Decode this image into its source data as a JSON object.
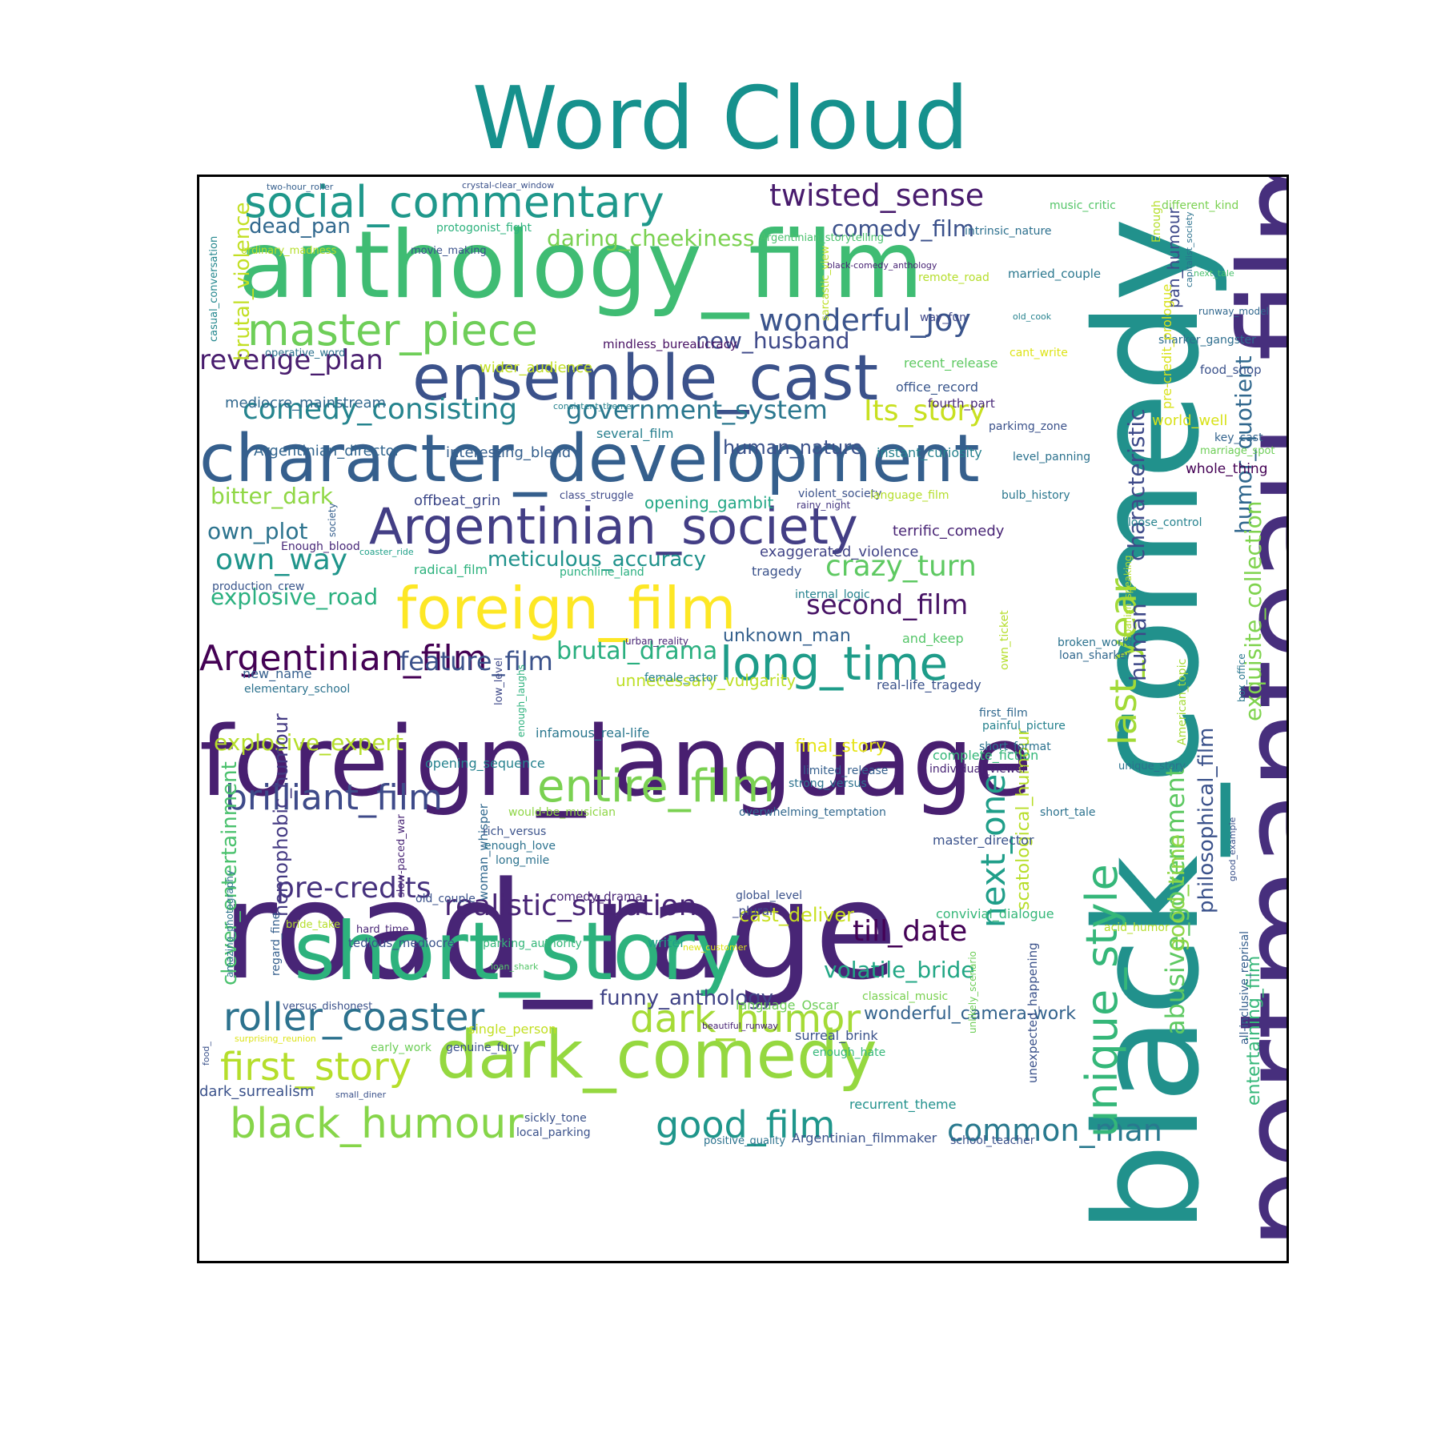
{
  "title": "Word Cloud",
  "title_color": "#16918d",
  "words": [
    {
      "text": "black_comedy",
      "color": "#21918c"
    },
    {
      "text": "portmanteau_film",
      "color": "#472f7d"
    },
    {
      "text": "road_rage",
      "color": "#482576"
    },
    {
      "text": "foreign_language",
      "color": "#481f70"
    },
    {
      "text": "anthology_film",
      "color": "#3fbc73"
    },
    {
      "text": "character_development",
      "color": "#355f8d"
    },
    {
      "text": "short_story",
      "color": "#2db27d"
    },
    {
      "text": "dark_comedy",
      "color": "#95d840"
    },
    {
      "text": "ensemble_cast",
      "color": "#3b528b"
    },
    {
      "text": "Argentinian_society",
      "color": "#433e85"
    },
    {
      "text": "foreign_film",
      "color": "#fde725"
    },
    {
      "text": "social_commentary",
      "color": "#1f988b"
    },
    {
      "text": "master_piece",
      "color": "#6ece58"
    },
    {
      "text": "long_time",
      "color": "#1e9c89"
    },
    {
      "text": "entire_film",
      "color": "#7ad151"
    },
    {
      "text": "dark_humor",
      "color": "#a5db36"
    },
    {
      "text": "black_humour",
      "color": "#86d549"
    },
    {
      "text": "roller_coaster",
      "color": "#2c728e"
    },
    {
      "text": "first_story",
      "color": "#b5de2b"
    },
    {
      "text": "Argentinian_film",
      "color": "#440154"
    },
    {
      "text": "brilliant_film",
      "color": "#3e4a89"
    },
    {
      "text": "good_film",
      "color": "#1f968b"
    },
    {
      "text": "common_man",
      "color": "#29798e"
    },
    {
      "text": "unique_style",
      "color": "#35b779"
    },
    {
      "text": "last_year",
      "color": "#a2da37"
    },
    {
      "text": "next_one",
      "color": "#1f9e89"
    },
    {
      "text": "abusive_government",
      "color": "#5ec962"
    },
    {
      "text": "humor_quotient",
      "color": "#31688e"
    },
    {
      "text": "exquisite_collection",
      "color": "#7fd34e"
    },
    {
      "text": "twisted_sense",
      "color": "#481b6d"
    },
    {
      "text": "wonderful_joy",
      "color": "#3a548c"
    },
    {
      "text": "comedy_consisting",
      "color": "#25848e"
    },
    {
      "text": "government_system",
      "color": "#2a778e"
    },
    {
      "text": "Its_story",
      "color": "#c8e020"
    },
    {
      "text": "revenge_plan",
      "color": "#481c6e"
    },
    {
      "text": "own_way",
      "color": "#1f958b"
    },
    {
      "text": "crazy_turn",
      "color": "#5ec962"
    },
    {
      "text": "second_film",
      "color": "#471365"
    },
    {
      "text": "realistic_situation",
      "color": "#482475"
    },
    {
      "text": "pre-credits",
      "color": "#46327e"
    },
    {
      "text": "till_date",
      "color": "#440256"
    },
    {
      "text": "daring_cheekiness",
      "color": "#7ad151"
    },
    {
      "text": "comedy_film",
      "color": "#3b518b"
    },
    {
      "text": "dead_pan",
      "color": "#31688e"
    },
    {
      "text": "new_husband",
      "color": "#3e4989"
    },
    {
      "text": "feature_film",
      "color": "#3b528b"
    },
    {
      "text": "own_plot",
      "color": "#2c738e"
    },
    {
      "text": "bitter_dark",
      "color": "#8fd744"
    },
    {
      "text": "explosive_road",
      "color": "#2ab07f"
    },
    {
      "text": "explosive_expert",
      "color": "#b5de2b"
    },
    {
      "text": "brutal_drama",
      "color": "#29af7f"
    },
    {
      "text": "volatile_bride",
      "color": "#22a785"
    },
    {
      "text": "funny_anthology",
      "color": "#414487"
    },
    {
      "text": "wonderful_camera-work",
      "color": "#33638d"
    },
    {
      "text": "meticulous_accuracy",
      "color": "#20928c"
    },
    {
      "text": "human_nature",
      "color": "#3b528b"
    },
    {
      "text": "brutal_violence",
      "color": "#c2df23"
    },
    {
      "text": "clever_entertainment",
      "color": "#4ac16d"
    },
    {
      "text": "characteristic",
      "color": "#3e4a89"
    },
    {
      "text": "human",
      "color": "#3e4989"
    },
    {
      "text": "philosophical_film",
      "color": "#3b528b"
    },
    {
      "text": "good_time",
      "color": "#8ed645"
    },
    {
      "text": "entertaining_film",
      "color": "#35b779"
    },
    {
      "text": "homophobic_humour",
      "color": "#443a83"
    },
    {
      "text": "scatological_humour",
      "color": "#b8de29"
    },
    {
      "text": "unknown_man",
      "color": "#34608d"
    },
    {
      "text": "unnecessary_vulgarity",
      "color": "#bddf26"
    },
    {
      "text": "cast_deliver",
      "color": "#c8e020"
    },
    {
      "text": "final_story",
      "color": "#e5e419"
    },
    {
      "text": "opening_gambit",
      "color": "#22a785"
    },
    {
      "text": "interesting_blend",
      "color": "#355f8d"
    },
    {
      "text": "Argentinian_director",
      "color": "#32658e"
    },
    {
      "text": "mediocre_mainstream",
      "color": "#31688e"
    },
    {
      "text": "wider_audience",
      "color": "#c2df23"
    },
    {
      "text": "mindless_bureaucracy",
      "color": "#471063"
    },
    {
      "text": "recent_release",
      "color": "#5ec962"
    },
    {
      "text": "office_record",
      "color": "#39568c"
    },
    {
      "text": "fourth_part",
      "color": "#482878"
    },
    {
      "text": "parkimg_zone",
      "color": "#3b528b"
    },
    {
      "text": "instant_curiosity",
      "color": "#26828e"
    },
    {
      "text": "level_panning",
      "color": "#2c728e"
    },
    {
      "text": "whole_thing",
      "color": "#440154"
    },
    {
      "text": "key_cast",
      "color": "#33638d"
    },
    {
      "text": "marriage_spot",
      "color": "#6ece58"
    },
    {
      "text": "world_well",
      "color": "#d8e219"
    },
    {
      "text": "food_shop",
      "color": "#3b528b"
    },
    {
      "text": "sharker_gangster",
      "color": "#2e6e8e"
    },
    {
      "text": "cant_write",
      "color": "#dde318"
    },
    {
      "text": "runway_model",
      "color": "#31688e"
    },
    {
      "text": "old_cook",
      "color": "#26828e"
    },
    {
      "text": "way_fun",
      "color": "#3f4788"
    },
    {
      "text": "married_couple",
      "color": "#2a778e"
    },
    {
      "text": "remote_road",
      "color": "#b5de2b"
    },
    {
      "text": "black-comedy_anthology",
      "color": "#482475"
    },
    {
      "text": "intrinsic_nature",
      "color": "#2d708e"
    },
    {
      "text": "Argentinian_storytelling",
      "color": "#4ac16d"
    },
    {
      "text": "music_critic",
      "color": "#54c568"
    },
    {
      "text": "different_kind",
      "color": "#7ad151"
    },
    {
      "text": "next_tale",
      "color": "#4ac16d"
    },
    {
      "text": "capitalist_society",
      "color": "#2c728e"
    },
    {
      "text": "pan_humour",
      "color": "#3e4989"
    },
    {
      "text": "Enough",
      "color": "#b5de2b"
    },
    {
      "text": "pre-credit_prologue",
      "color": "#d8e219"
    },
    {
      "text": "sarcastic_view",
      "color": "#bddf26"
    },
    {
      "text": "two-hour_roller",
      "color": "#355f8d"
    },
    {
      "text": "crystal-clear_window",
      "color": "#3b528b"
    },
    {
      "text": "protogonist_fight",
      "color": "#2db27d"
    },
    {
      "text": "movie_making",
      "color": "#3b528b"
    },
    {
      "text": "ordinary_madness",
      "color": "#b5de2b"
    },
    {
      "text": "casual_conversation",
      "color": "#24878e"
    },
    {
      "text": "operative_word",
      "color": "#2c728e"
    },
    {
      "text": "consistent_theme",
      "color": "#26828e"
    },
    {
      "text": "several_film",
      "color": "#277f8e"
    },
    {
      "text": "class_struggle",
      "color": "#3e4989"
    },
    {
      "text": "offbeat_grin",
      "color": "#3e4989"
    },
    {
      "text": "violent_society",
      "color": "#3b528b"
    },
    {
      "text": "rainy_night",
      "color": "#453781"
    },
    {
      "text": "language_film",
      "color": "#b5de2b"
    },
    {
      "text": "bulb_history",
      "color": "#2a778e"
    },
    {
      "text": "loose_control",
      "color": "#26828e"
    },
    {
      "text": "terrific_comedy",
      "color": "#482475"
    },
    {
      "text": "exaggerated_violence",
      "color": "#414487"
    },
    {
      "text": "Enough_blood",
      "color": "#482878"
    },
    {
      "text": "coaster_ride",
      "color": "#1fa088"
    },
    {
      "text": "society",
      "color": "#355f8d"
    },
    {
      "text": "radical_film",
      "color": "#2db27d"
    },
    {
      "text": "punchline_land",
      "color": "#29af7f"
    },
    {
      "text": "tragedy",
      "color": "#3b528b"
    },
    {
      "text": "internal_logic",
      "color": "#26828e"
    },
    {
      "text": "production_crew",
      "color": "#39568c"
    },
    {
      "text": "Spanish_speaking",
      "color": "#b5de2b"
    },
    {
      "text": "own_ticket",
      "color": "#b5de2b"
    },
    {
      "text": "broken_world",
      "color": "#2c728e"
    },
    {
      "text": "loan_sharker",
      "color": "#31688e"
    },
    {
      "text": "and_keep",
      "color": "#54c568"
    },
    {
      "text": "urban_reality",
      "color": "#482475"
    },
    {
      "text": "female_actor",
      "color": "#26828e"
    },
    {
      "text": "real-life_tragedy",
      "color": "#3b528b"
    },
    {
      "text": "new_name",
      "color": "#355f8d"
    },
    {
      "text": "elementary_school",
      "color": "#2c728e"
    },
    {
      "text": "American_topic",
      "color": "#a5db36"
    },
    {
      "text": "box_office",
      "color": "#2a778e"
    },
    {
      "text": "first_film",
      "color": "#31688e"
    },
    {
      "text": "painful_picture",
      "color": "#26828e"
    },
    {
      "text": "short_format",
      "color": "#2c728e"
    },
    {
      "text": "enough_laughs",
      "color": "#2db27d"
    },
    {
      "text": "low_level",
      "color": "#3e4989"
    },
    {
      "text": "infamous_real-life",
      "color": "#2a778e"
    },
    {
      "text": "opening_sequence",
      "color": "#26828e"
    },
    {
      "text": "complete_fiction",
      "color": "#35b779"
    },
    {
      "text": "individual_viewer",
      "color": "#482475"
    },
    {
      "text": "limited_release",
      "color": "#355f8d"
    },
    {
      "text": "strong_versus",
      "color": "#2c728e"
    },
    {
      "text": "unique_story",
      "color": "#2c728e"
    },
    {
      "text": "would-be_musician",
      "color": "#8ed645"
    },
    {
      "text": "overwhelming_temptation",
      "color": "#31688e"
    },
    {
      "text": "short_tale",
      "color": "#2c728e"
    },
    {
      "text": "woman_whisper",
      "color": "#31688e"
    },
    {
      "text": "rich_versus",
      "color": "#3b528b"
    },
    {
      "text": "enough_love",
      "color": "#2c728e"
    },
    {
      "text": "long_mile",
      "color": "#2c728e"
    },
    {
      "text": "slow-paced_war",
      "color": "#482475"
    },
    {
      "text": "master_director",
      "color": "#3b528b"
    },
    {
      "text": "old_couple",
      "color": "#3b528b"
    },
    {
      "text": "comedy_drama",
      "color": "#482475"
    },
    {
      "text": "global_level",
      "color": "#3b528b"
    },
    {
      "text": "_plural",
      "color": "#3e4989"
    },
    {
      "text": "convivial_dialogue",
      "color": "#35b779"
    },
    {
      "text": "good_example",
      "color": "#3b528b"
    },
    {
      "text": "acid_humor",
      "color": "#b5de2b"
    },
    {
      "text": "all-inclusive_reprisal",
      "color": "#355f8d"
    },
    {
      "text": "bride_take",
      "color": "#b5de2b"
    },
    {
      "text": "hard_time",
      "color": "#482475"
    },
    {
      "text": "tedious_mediocre",
      "color": "#3b528b"
    },
    {
      "text": "parking_authority",
      "color": "#35b779"
    },
    {
      "text": "writer",
      "color": "#1fa088"
    },
    {
      "text": "new_customer",
      "color": "#dde318"
    },
    {
      "text": "amazing_photography",
      "color": "#2c728e"
    },
    {
      "text": "regard_fine",
      "color": "#355f8d"
    },
    {
      "text": "loan_shark",
      "color": "#54c568"
    },
    {
      "text": "language_Oscar",
      "color": "#6ece58"
    },
    {
      "text": "classical_music",
      "color": "#7ad151"
    },
    {
      "text": "unlikely_scenario",
      "color": "#6ece58"
    },
    {
      "text": "unexpected_happening",
      "color": "#3b528b"
    },
    {
      "text": "versus_dishonest",
      "color": "#3b528b"
    },
    {
      "text": "beautiful_runway",
      "color": "#482475"
    },
    {
      "text": "surreal_brink",
      "color": "#3b528b"
    },
    {
      "text": "single_person",
      "color": "#c2df23"
    },
    {
      "text": "surprising_reunion",
      "color": "#dde318"
    },
    {
      "text": "early_work",
      "color": "#6ece58"
    },
    {
      "text": "genuine_fury",
      "color": "#3b528b"
    },
    {
      "text": "enough_hate",
      "color": "#35b779"
    },
    {
      "text": "food_",
      "color": "#3b528b"
    },
    {
      "text": "dark_surrealism",
      "color": "#3b528b"
    },
    {
      "text": "small_diner",
      "color": "#3b528b"
    },
    {
      "text": "recurrent_theme",
      "color": "#21918c"
    },
    {
      "text": "sickly_tone",
      "color": "#3b528b"
    },
    {
      "text": "local_parking",
      "color": "#3b528b"
    },
    {
      "text": "positive_quality",
      "color": "#2c728e"
    },
    {
      "text": "Argentinian_filmmaker",
      "color": "#3b528b"
    },
    {
      "text": "school_teacher",
      "color": "#3b528b"
    }
  ]
}
